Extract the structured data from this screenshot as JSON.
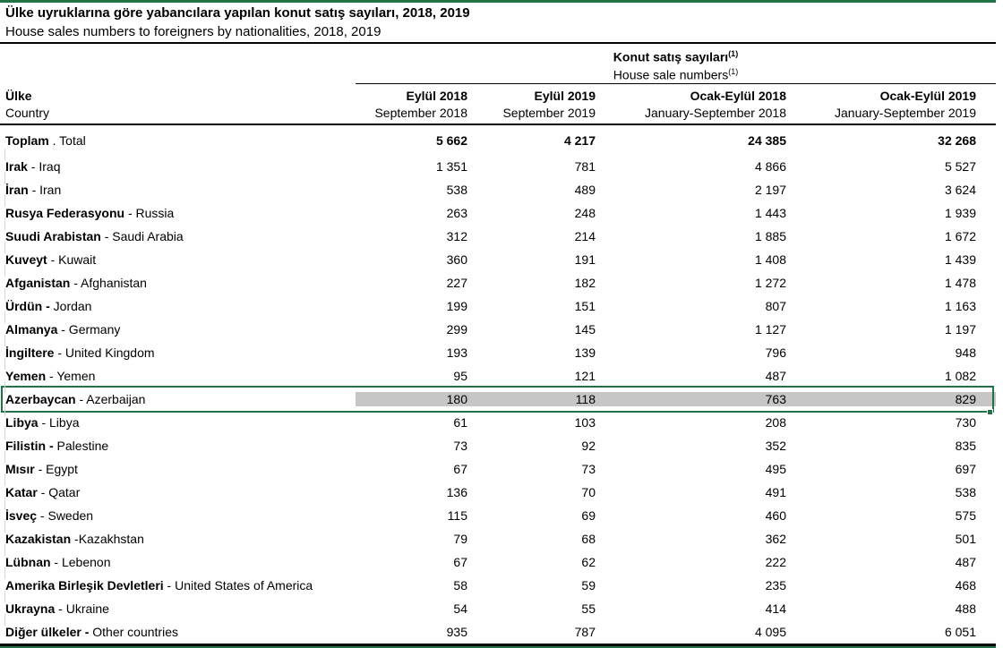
{
  "header": {
    "title": "Ülke uyruklarına göre yabancılara yapılan konut satış sayıları, 2018, 2019",
    "subtitle": "House sales numbers to foreigners by nationalities, 2018, 2019"
  },
  "colors": {
    "accent_green": "#217346",
    "selection_fill": "#c6c6c6",
    "rule_black": "#000000"
  },
  "table": {
    "group_header": {
      "tr": "Konut satış sayıları",
      "en": "House sale numbers",
      "note_marker": "(1)"
    },
    "stub_header": {
      "tr": "Ülke",
      "en": "Country"
    },
    "columns": [
      {
        "tr": "Eylül 2018",
        "en": "September 2018"
      },
      {
        "tr": "Eylül 2019",
        "en": "September 2019"
      },
      {
        "tr": "Ocak-Eylül 2018",
        "en": "January-September 2018"
      },
      {
        "tr": "Ocak-Eylül 2019",
        "en": "January-September 2019"
      }
    ],
    "rows": [
      {
        "tr": "Toplam",
        "rest": " . Total",
        "values": [
          "5 662",
          "4 217",
          "24 385",
          "32 268"
        ],
        "values_bold": true,
        "total": true,
        "selected": false
      },
      {
        "tr": "Irak",
        "rest": " - Iraq",
        "values": [
          "1 351",
          "781",
          "4 866",
          "5 527"
        ],
        "values_bold": false,
        "total": false,
        "selected": false
      },
      {
        "tr": "İran",
        "rest": " - Iran",
        "values": [
          "538",
          "489",
          "2 197",
          "3 624"
        ],
        "values_bold": false,
        "total": false,
        "selected": false
      },
      {
        "tr": "Rusya Federasyonu",
        "rest": " - Russia",
        "values": [
          "263",
          "248",
          "1 443",
          "1 939"
        ],
        "values_bold": false,
        "total": false,
        "selected": false
      },
      {
        "tr": "Suudi Arabistan",
        "rest": " - Saudi Arabia",
        "values": [
          "312",
          "214",
          "1 885",
          "1 672"
        ],
        "values_bold": false,
        "total": false,
        "selected": false
      },
      {
        "tr": "Kuveyt",
        "rest": " - Kuwait",
        "values": [
          "360",
          "191",
          "1 408",
          "1 439"
        ],
        "values_bold": false,
        "total": false,
        "selected": false
      },
      {
        "tr": "Afganistan",
        "rest": " - Afghanistan",
        "values": [
          "227",
          "182",
          "1 272",
          "1 478"
        ],
        "values_bold": false,
        "total": false,
        "selected": false
      },
      {
        "tr": "Ürdün -",
        "rest": " Jordan",
        "values": [
          "199",
          "151",
          "807",
          "1 163"
        ],
        "values_bold": false,
        "total": false,
        "selected": false
      },
      {
        "tr": "Almanya",
        "rest": " - Germany",
        "values": [
          "299",
          "145",
          "1 127",
          "1 197"
        ],
        "values_bold": false,
        "total": false,
        "selected": false
      },
      {
        "tr": "İngiltere",
        "rest": " - United Kingdom",
        "values": [
          "193",
          "139",
          "796",
          "948"
        ],
        "values_bold": false,
        "total": false,
        "selected": false
      },
      {
        "tr": "Yemen",
        "rest": " - Yemen",
        "values": [
          "95",
          "121",
          "487",
          "1 082"
        ],
        "values_bold": false,
        "total": false,
        "selected": false
      },
      {
        "tr": "Azerbaycan",
        "rest": " - Azerbaijan",
        "values": [
          "180",
          "118",
          "763",
          "829"
        ],
        "values_bold": false,
        "total": false,
        "selected": true
      },
      {
        "tr": "Libya",
        "rest": " - Libya",
        "values": [
          "61",
          "103",
          "208",
          "730"
        ],
        "values_bold": false,
        "total": false,
        "selected": false
      },
      {
        "tr": "Filistin -",
        "rest": " Palestine",
        "values": [
          "73",
          "92",
          "352",
          "835"
        ],
        "values_bold": false,
        "total": false,
        "selected": false
      },
      {
        "tr": "Mısır",
        "rest": " - Egypt",
        "values": [
          "67",
          "73",
          "495",
          "697"
        ],
        "values_bold": false,
        "total": false,
        "selected": false
      },
      {
        "tr": "Katar",
        "rest": " - Qatar",
        "values": [
          "136",
          "70",
          "491",
          "538"
        ],
        "values_bold": false,
        "total": false,
        "selected": false
      },
      {
        "tr": "İsveç",
        "rest": " - Sweden",
        "values": [
          "115",
          "69",
          "460",
          "575"
        ],
        "values_bold": false,
        "total": false,
        "selected": false
      },
      {
        "tr": "Kazakistan",
        "rest": " -Kazakhstan",
        "values": [
          "79",
          "68",
          "362",
          "501"
        ],
        "values_bold": false,
        "total": false,
        "selected": false
      },
      {
        "tr": "Lübnan",
        "rest": " - Lebenon",
        "values": [
          "67",
          "62",
          "222",
          "487"
        ],
        "values_bold": false,
        "total": false,
        "selected": false
      },
      {
        "tr": "Amerika Birleşik Devletleri",
        "rest": " - United States of America",
        "values": [
          "58",
          "59",
          "235",
          "468"
        ],
        "values_bold": false,
        "total": false,
        "selected": false
      },
      {
        "tr": "Ukrayna",
        "rest": " - Ukraine",
        "values": [
          "54",
          "55",
          "414",
          "488"
        ],
        "values_bold": false,
        "total": false,
        "selected": false
      },
      {
        "tr": "Diğer ülkeler -",
        "rest": " Other countries",
        "values": [
          "935",
          "787",
          "4 095",
          "6 051"
        ],
        "values_bold": false,
        "total": false,
        "selected": false
      }
    ]
  }
}
